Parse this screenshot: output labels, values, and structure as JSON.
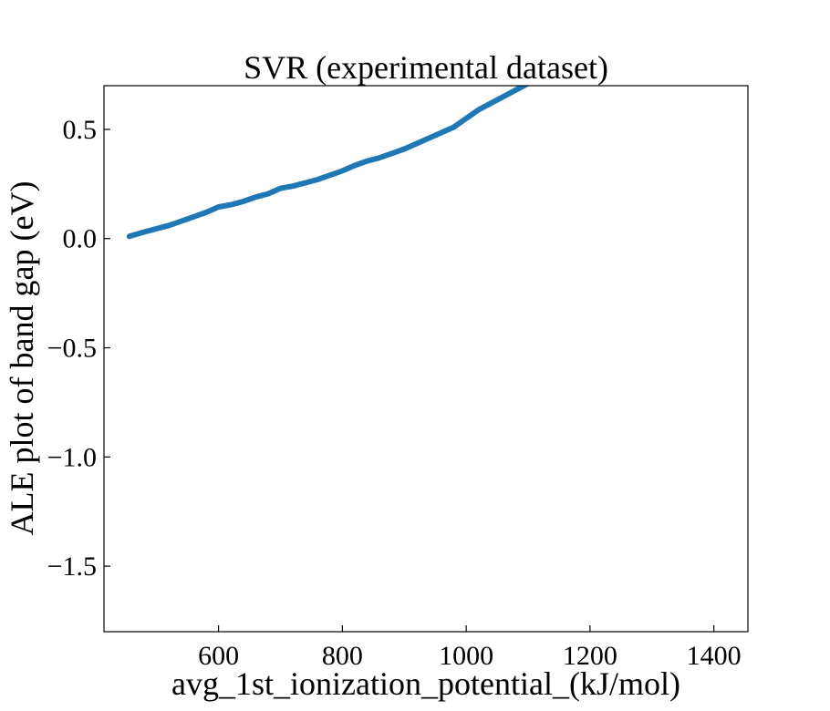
{
  "chart_data": {
    "type": "line",
    "title": "SVR (experimental dataset)",
    "xlabel": "avg_1st_ionization_potential_(kJ/mol)",
    "ylabel": "ALE plot of band gap (eV)",
    "xlim": [
      415,
      1455
    ],
    "ylim": [
      -1.8,
      0.7
    ],
    "grid": false,
    "x_ticks": [
      600,
      800,
      1000,
      1200,
      1400
    ],
    "x_tick_labels": [
      "600",
      "800",
      "1000",
      "1200",
      "1400"
    ],
    "y_ticks": [
      0.5,
      0.0,
      -0.5,
      -1.0,
      -1.5
    ],
    "y_tick_labels": [
      "0.5",
      "0.0",
      "−0.5",
      "−1.0",
      "−1.5"
    ],
    "series": [
      {
        "color": "#1f77b4",
        "x": [
          456,
          480,
          500,
          520,
          540,
          560,
          580,
          600,
          620,
          640,
          660,
          680,
          700,
          720,
          740,
          760,
          780,
          800,
          820,
          840,
          860,
          880,
          900,
          920,
          940,
          960,
          980,
          1000,
          1020,
          1040,
          1060,
          1080,
          1100
        ],
        "y": [
          0.01,
          0.03,
          0.045,
          0.06,
          0.08,
          0.1,
          0.12,
          0.145,
          0.155,
          0.17,
          0.19,
          0.205,
          0.23,
          0.24,
          0.255,
          0.27,
          0.29,
          0.31,
          0.335,
          0.355,
          0.37,
          0.39,
          0.41,
          0.435,
          0.46,
          0.485,
          0.51,
          0.55,
          0.59,
          0.62,
          0.65,
          0.68,
          0.71
        ]
      }
    ]
  }
}
